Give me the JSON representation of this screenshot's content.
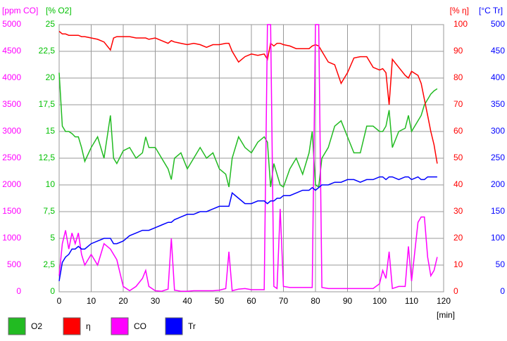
{
  "chart_data": {
    "type": "line",
    "xlabel": "[min]",
    "xlim": [
      0,
      120
    ],
    "xticks": [
      0,
      10,
      20,
      30,
      40,
      50,
      60,
      70,
      80,
      90,
      100,
      110,
      120
    ],
    "axes": [
      {
        "name": "[ppm CO]",
        "color": "#ff00ff",
        "side": "left",
        "lim": [
          0,
          5000
        ],
        "ticks": [
          0,
          500,
          1000,
          1500,
          2000,
          2500,
          3000,
          3500,
          4000,
          4500,
          5000
        ]
      },
      {
        "name": "[% O2]",
        "color": "#00c000",
        "side": "left",
        "lim": [
          0,
          25
        ],
        "ticks": [
          0,
          {
            "value": 2.5,
            "label": "2,5"
          },
          5,
          {
            "value": 7.5,
            "label": "7,5"
          },
          10,
          {
            "value": 12.5,
            "label": "12,5"
          },
          15,
          {
            "value": 17.5,
            "label": "17,5"
          },
          20,
          {
            "value": 22.5,
            "label": "22,5"
          },
          25
        ]
      },
      {
        "name": "[% η]",
        "color": "#ff0000",
        "side": "right",
        "lim": [
          0,
          100
        ],
        "ticks": [
          0,
          10,
          20,
          30,
          40,
          50,
          60,
          70,
          80,
          90,
          100
        ]
      },
      {
        "name": "[°C Tr]",
        "color": "#0000ff",
        "side": "right",
        "lim": [
          0,
          500
        ],
        "ticks": [
          0,
          50,
          100,
          150,
          200,
          250,
          300,
          350,
          400,
          450,
          500
        ]
      }
    ],
    "grid": true,
    "x": [
      0,
      1,
      2,
      3,
      4,
      5,
      6,
      7,
      8,
      10,
      12,
      14,
      16,
      17,
      18,
      20,
      22,
      24,
      26,
      27,
      28,
      30,
      32,
      34,
      35,
      36,
      38,
      40,
      42,
      44,
      46,
      48,
      50,
      52,
      53,
      54,
      56,
      58,
      60,
      62,
      64,
      65,
      66,
      67,
      68,
      69,
      70,
      72,
      74,
      76,
      78,
      79,
      80,
      81,
      82,
      84,
      86,
      88,
      90,
      92,
      94,
      96,
      98,
      100,
      101,
      102,
      103,
      104,
      106,
      108,
      109,
      110,
      112,
      113,
      114,
      115,
      116,
      117,
      118
    ],
    "series": [
      {
        "name": "O2",
        "color": "#22bb22",
        "axis": 1,
        "values": [
          20.5,
          15.5,
          15,
          15,
          14.8,
          14.5,
          14.5,
          13.5,
          12.2,
          13.5,
          14.5,
          12.5,
          16.5,
          12.5,
          12,
          13.2,
          13.5,
          12.5,
          13,
          14.5,
          13.5,
          13.5,
          12.5,
          11.5,
          10.5,
          12.5,
          13,
          11.5,
          12.5,
          13.5,
          12.5,
          13,
          11.5,
          11,
          9.8,
          12.5,
          14.5,
          13.5,
          13,
          14,
          14.5,
          14,
          9.8,
          12,
          11,
          10,
          9.8,
          11.5,
          12.5,
          11,
          13,
          15,
          10,
          9.8,
          12.5,
          13.5,
          15.5,
          16,
          14.5,
          13,
          13,
          15.5,
          15.5,
          15,
          15,
          15.5,
          17,
          13.5,
          15,
          15.3,
          16.5,
          15,
          16,
          16.5,
          17.5,
          18,
          18.5,
          18.8,
          19
        ]
      },
      {
        "name": "η",
        "color": "#ff0000",
        "axis": 2,
        "values": [
          97.5,
          96.5,
          96.5,
          96,
          96,
          96,
          96,
          95.5,
          95.5,
          95,
          94.5,
          93.5,
          90.5,
          95,
          95.5,
          95.5,
          95.5,
          95,
          95,
          95,
          94.5,
          95,
          94,
          93,
          94,
          93.5,
          93,
          92.5,
          93,
          92.5,
          91.5,
          92.5,
          92.5,
          93,
          93,
          90,
          86,
          88,
          89,
          88.5,
          89,
          87,
          93,
          92,
          93,
          93,
          92.5,
          92,
          91,
          91,
          91,
          92,
          92.5,
          92,
          90,
          86,
          85,
          78,
          82,
          87.5,
          88,
          88,
          84,
          83,
          83.5,
          82,
          70,
          87,
          84,
          81,
          80,
          82.5,
          81,
          78,
          72,
          66,
          60,
          55,
          48
        ]
      },
      {
        "name": "CO",
        "color": "#ff00ff",
        "axis": 0,
        "values": [
          300,
          900,
          1150,
          800,
          1100,
          900,
          1100,
          700,
          500,
          700,
          500,
          900,
          800,
          700,
          600,
          100,
          20,
          100,
          250,
          400,
          100,
          20,
          10,
          50,
          1000,
          30,
          10,
          10,
          20,
          20,
          20,
          20,
          30,
          60,
          750,
          20,
          50,
          60,
          40,
          40,
          40,
          5000,
          5000,
          100,
          60,
          1550,
          100,
          80,
          80,
          80,
          80,
          80,
          5000,
          5000,
          80,
          60,
          60,
          60,
          60,
          60,
          60,
          60,
          60,
          150,
          400,
          250,
          750,
          60,
          100,
          100,
          850,
          200,
          1300,
          1400,
          1400,
          650,
          300,
          400,
          650
        ]
      },
      {
        "name": "Tr",
        "color": "#0000ff",
        "axis": 3,
        "values": [
          20,
          55,
          65,
          70,
          80,
          80,
          85,
          80,
          80,
          90,
          95,
          100,
          100,
          90,
          90,
          95,
          105,
          110,
          115,
          115,
          115,
          120,
          125,
          130,
          130,
          135,
          140,
          145,
          145,
          150,
          150,
          155,
          160,
          160,
          160,
          185,
          175,
          165,
          165,
          170,
          170,
          165,
          170,
          170,
          175,
          175,
          180,
          180,
          185,
          190,
          190,
          195,
          190,
          195,
          200,
          200,
          205,
          205,
          210,
          210,
          205,
          210,
          210,
          215,
          215,
          210,
          215,
          215,
          210,
          215,
          215,
          210,
          215,
          210,
          210,
          215,
          215,
          215,
          215
        ]
      }
    ]
  }
}
